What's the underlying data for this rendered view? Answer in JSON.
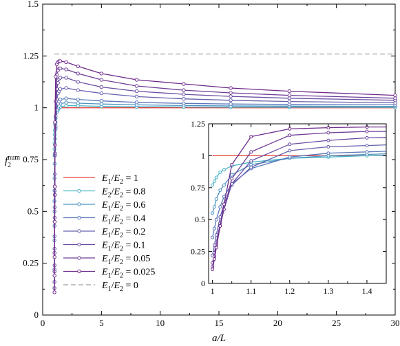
{
  "chart_data": [
    {
      "type": "line",
      "xlabel": "a/L",
      "ylabel": "f₂num",
      "ylabel_parts": {
        "base": "f",
        "sub": "2",
        "sup": "num"
      },
      "xlim": [
        0,
        30
      ],
      "ylim": [
        0,
        1.5
      ],
      "xticks": [
        0,
        5,
        10,
        15,
        20,
        25,
        30
      ],
      "yticks": [
        0,
        0.25,
        0.5,
        0.75,
        1,
        1.25,
        1.5
      ],
      "xtick_labels": [
        "0",
        "5",
        "10",
        "15",
        "20",
        "25",
        "30"
      ],
      "ytick_labels": [
        "0",
        "0.25",
        "0.5",
        "0.75",
        "1",
        "1.25",
        "1.5"
      ],
      "grid": false,
      "legend_position": "bottom-left",
      "series": [
        {
          "name": "E1/E2 = 1",
          "legend": {
            "a": "E",
            "asub": "1",
            "b": "E",
            "bsub": "2",
            "val": "1"
          },
          "color": "#e8423d",
          "style": "solid",
          "markers": false,
          "x": [
            1,
            30
          ],
          "y": [
            1.0,
            1.0
          ]
        },
        {
          "name": "E2/E2 = 0.8",
          "legend": {
            "a": "E",
            "asub": "2",
            "b": "E",
            "bsub": "2",
            "val": "0.8"
          },
          "color": "#47b3c6",
          "style": "solid",
          "markers": true,
          "x": [
            1.0,
            1.005,
            1.01,
            1.02,
            1.03,
            1.05,
            1.1,
            1.2,
            1.3,
            1.4,
            1.5,
            2,
            3,
            5,
            8,
            12,
            16,
            21,
            30
          ],
          "y": [
            0.77,
            0.8,
            0.83,
            0.87,
            0.89,
            0.92,
            0.95,
            0.98,
            0.99,
            1.0,
            1.005,
            1.01,
            1.01,
            1.007,
            1.005,
            1.004,
            1.003,
            1.003,
            1.002
          ]
        },
        {
          "name": "E1/E2 = 0.6",
          "legend": {
            "a": "E",
            "asub": "1",
            "b": "E",
            "bsub": "2",
            "val": "0.6"
          },
          "color": "#4b93c3",
          "style": "solid",
          "markers": true,
          "x": [
            1.0,
            1.005,
            1.01,
            1.02,
            1.03,
            1.05,
            1.1,
            1.2,
            1.3,
            1.4,
            1.5,
            2,
            3,
            5,
            8,
            12,
            16,
            21,
            30
          ],
          "y": [
            0.55,
            0.6,
            0.66,
            0.73,
            0.77,
            0.85,
            0.93,
            0.98,
            1.0,
            1.01,
            1.02,
            1.025,
            1.022,
            1.018,
            1.014,
            1.011,
            1.009,
            1.008,
            1.007
          ]
        },
        {
          "name": "E1/E2 = 0.4",
          "legend": {
            "a": "E",
            "asub": "1",
            "b": "E",
            "bsub": "2",
            "val": "0.4"
          },
          "color": "#5a78ba",
          "style": "solid",
          "markers": true,
          "x": [
            1.0,
            1.005,
            1.01,
            1.02,
            1.03,
            1.05,
            1.1,
            1.2,
            1.3,
            1.4,
            1.5,
            2,
            3,
            5,
            8,
            12,
            16,
            21,
            30
          ],
          "y": [
            0.36,
            0.43,
            0.5,
            0.6,
            0.68,
            0.78,
            0.9,
            0.99,
            1.02,
            1.03,
            1.04,
            1.045,
            1.04,
            1.033,
            1.026,
            1.021,
            1.018,
            1.016,
            1.014
          ]
        },
        {
          "name": "E1/E2 = 0.2",
          "legend": {
            "a": "E",
            "asub": "1",
            "b": "E",
            "bsub": "2",
            "val": "0.2"
          },
          "color": "#6560ad",
          "style": "solid",
          "markers": true,
          "x": [
            1.0,
            1.005,
            1.01,
            1.02,
            1.03,
            1.05,
            1.1,
            1.2,
            1.3,
            1.4,
            1.5,
            2,
            3,
            5,
            8,
            12,
            16,
            21,
            30
          ],
          "y": [
            0.22,
            0.3,
            0.38,
            0.52,
            0.62,
            0.77,
            0.91,
            1.04,
            1.07,
            1.08,
            1.09,
            1.095,
            1.085,
            1.07,
            1.054,
            1.043,
            1.036,
            1.03,
            1.024
          ]
        },
        {
          "name": "E1/E2 = 0.1",
          "legend": {
            "a": "E",
            "asub": "1",
            "b": "E",
            "bsub": "2",
            "val": "0.1"
          },
          "color": "#6a4da2",
          "style": "solid",
          "markers": true,
          "x": [
            1.0,
            1.005,
            1.01,
            1.02,
            1.03,
            1.05,
            1.1,
            1.2,
            1.3,
            1.4,
            1.5,
            2,
            3,
            5,
            8,
            12,
            16,
            21,
            30
          ],
          "y": [
            0.16,
            0.24,
            0.32,
            0.47,
            0.58,
            0.78,
            0.96,
            1.09,
            1.12,
            1.14,
            1.145,
            1.145,
            1.125,
            1.1,
            1.08,
            1.065,
            1.055,
            1.046,
            1.036
          ]
        },
        {
          "name": "E1/E2 = 0.05",
          "legend": {
            "a": "E",
            "asub": "1",
            "b": "E",
            "bsub": "2",
            "val": "0.05"
          },
          "color": "#6f3d97",
          "style": "solid",
          "markers": true,
          "x": [
            1.0,
            1.005,
            1.01,
            1.02,
            1.03,
            1.05,
            1.1,
            1.2,
            1.3,
            1.4,
            1.5,
            2,
            3,
            5,
            8,
            12,
            16,
            21,
            30
          ],
          "y": [
            0.13,
            0.21,
            0.3,
            0.45,
            0.58,
            0.82,
            1.03,
            1.16,
            1.18,
            1.19,
            1.19,
            1.185,
            1.165,
            1.135,
            1.105,
            1.085,
            1.072,
            1.06,
            1.046
          ]
        },
        {
          "name": "E1/E2 = 0.025",
          "legend": {
            "a": "E",
            "asub": "1",
            "b": "E",
            "bsub": "2",
            "val": "0.025"
          },
          "color": "#6e2a8a",
          "style": "solid",
          "markers": true,
          "x": [
            1.0,
            1.005,
            1.01,
            1.02,
            1.03,
            1.05,
            1.1,
            1.2,
            1.3,
            1.4,
            1.5,
            2,
            3,
            5,
            8,
            12,
            16,
            21,
            30
          ],
          "y": [
            0.11,
            0.19,
            0.28,
            0.45,
            0.62,
            0.93,
            1.15,
            1.21,
            1.22,
            1.225,
            1.225,
            1.22,
            1.2,
            1.165,
            1.135,
            1.115,
            1.095,
            1.08,
            1.06
          ]
        },
        {
          "name": "E1/E2 = 0",
          "legend": {
            "a": "E",
            "asub": "1",
            "b": "E",
            "bsub": "2",
            "val": "0"
          },
          "color": "#a0a0a0",
          "style": "dashed",
          "markers": false,
          "x": [
            1,
            30
          ],
          "y": [
            1.2593,
            1.2593
          ]
        }
      ]
    },
    {
      "type": "line",
      "inset": true,
      "xlim": [
        0.99,
        1.45
      ],
      "ylim": [
        0,
        1.25
      ],
      "xticks": [
        1,
        1.1,
        1.2,
        1.3,
        1.4
      ],
      "yticks": [
        0,
        0.25,
        0.5,
        0.75,
        1,
        1.25
      ],
      "xtick_labels": [
        "1",
        "1.1",
        "1.2",
        "1.3",
        "1.4"
      ],
      "ytick_labels": [
        "0",
        "0.25",
        "0.5",
        "0.75",
        "1",
        "1.25"
      ],
      "series_ref": "same as main chart"
    }
  ]
}
